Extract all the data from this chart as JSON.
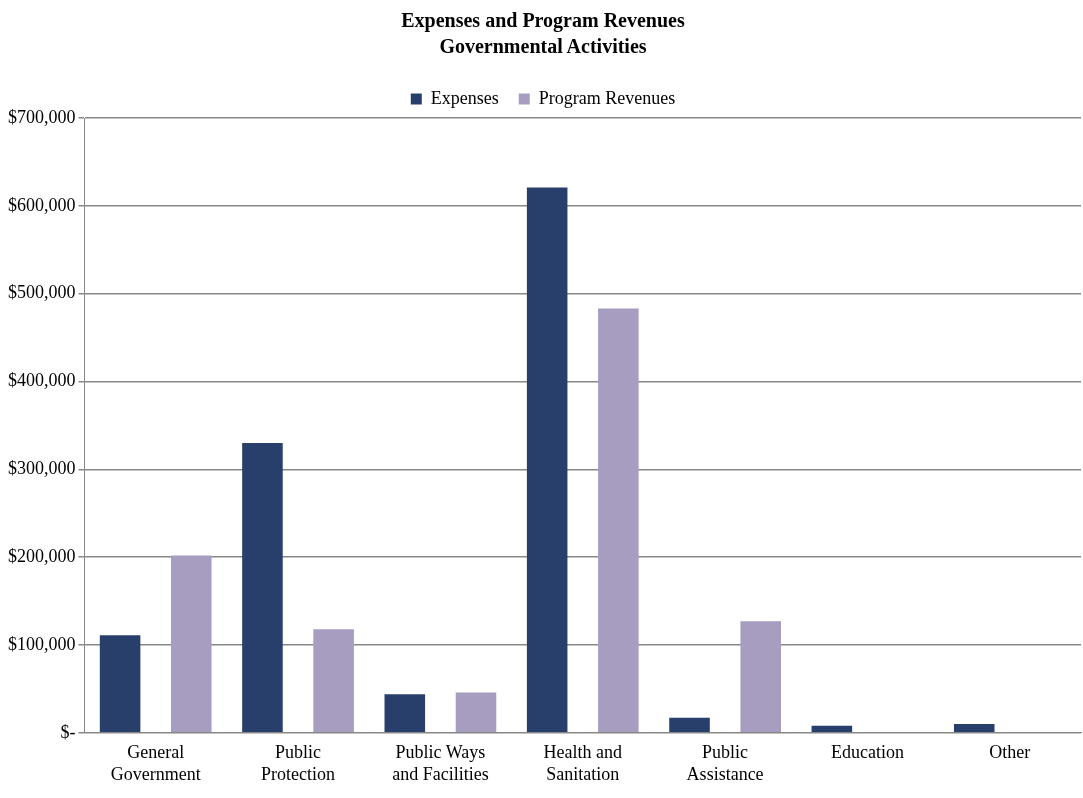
{
  "chart_data": {
    "type": "bar",
    "title": "Expenses and Program Revenues",
    "subtitle": "Governmental Activities",
    "categories": [
      "General Government",
      "Public Protection",
      "Public Ways and Facilities",
      "Health and Sanitation",
      "Public Assistance",
      "Education",
      "Other"
    ],
    "series": [
      {
        "name": "Expenses",
        "color": "#283f6b",
        "values": [
          111000,
          330000,
          44000,
          621000,
          17000,
          8000,
          10000
        ]
      },
      {
        "name": "Program Revenues",
        "color": "#a69dc0",
        "values": [
          202000,
          118000,
          46000,
          483000,
          127000,
          0,
          0
        ]
      }
    ],
    "ylim": [
      0,
      700000
    ],
    "yticks": [
      {
        "value": 0,
        "label": "$-"
      },
      {
        "value": 100000,
        "label": "$100,000"
      },
      {
        "value": 200000,
        "label": "$200,000"
      },
      {
        "value": 300000,
        "label": "$300,000"
      },
      {
        "value": 400000,
        "label": "$400,000"
      },
      {
        "value": 500000,
        "label": "$500,000"
      },
      {
        "value": 600000,
        "label": "$600,000"
      },
      {
        "value": 700000,
        "label": "$700,000"
      }
    ],
    "grid": "y",
    "legend": "top"
  }
}
